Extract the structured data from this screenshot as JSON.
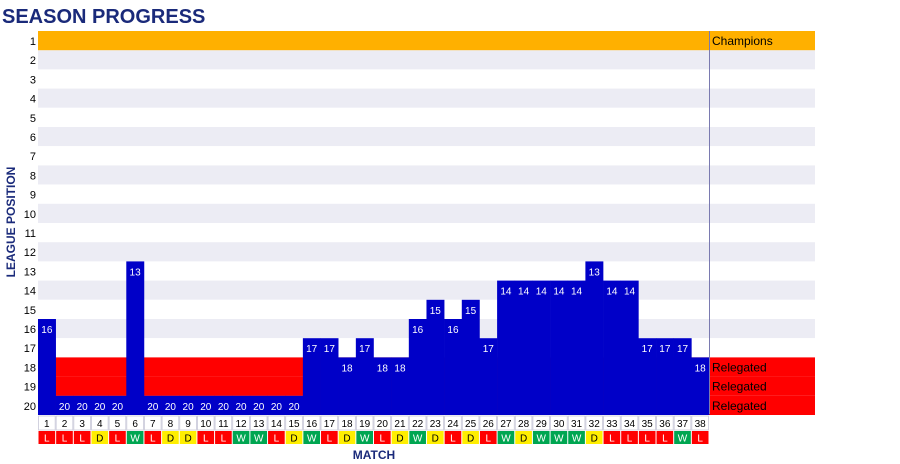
{
  "chart_data": {
    "type": "bar",
    "title": "SEASON PROGRESS",
    "xlabel": "MATCH",
    "ylabel": "LEAGUE POSITION",
    "y_axis_inverted": true,
    "ylim": [
      1,
      20
    ],
    "y_ticks": [
      "1",
      "2",
      "3",
      "4",
      "5",
      "6",
      "7",
      "8",
      "9",
      "10",
      "11",
      "12",
      "13",
      "14",
      "15",
      "16",
      "17",
      "18",
      "19",
      "20"
    ],
    "categories": [
      "1",
      "2",
      "3",
      "4",
      "5",
      "6",
      "7",
      "8",
      "9",
      "10",
      "11",
      "12",
      "13",
      "14",
      "15",
      "16",
      "17",
      "18",
      "19",
      "20",
      "21",
      "22",
      "23",
      "24",
      "25",
      "26",
      "27",
      "28",
      "29",
      "30",
      "31",
      "32",
      "33",
      "34",
      "35",
      "36",
      "37",
      "38"
    ],
    "values": [
      16,
      20,
      20,
      20,
      20,
      13,
      20,
      20,
      20,
      20,
      20,
      20,
      20,
      20,
      20,
      17,
      17,
      18,
      17,
      18,
      18,
      16,
      15,
      16,
      15,
      17,
      14,
      14,
      14,
      14,
      14,
      13,
      14,
      14,
      17,
      17,
      17,
      18
    ],
    "results": [
      "L",
      "L",
      "L",
      "D",
      "L",
      "W",
      "L",
      "D",
      "D",
      "L",
      "L",
      "W",
      "W",
      "L",
      "D",
      "W",
      "L",
      "D",
      "W",
      "L",
      "D",
      "W",
      "D",
      "L",
      "D",
      "L",
      "W",
      "D",
      "W",
      "W",
      "W",
      "D",
      "L",
      "L",
      "L",
      "L",
      "W",
      "L"
    ],
    "zones": [
      {
        "label": "Champions",
        "positions": [
          1
        ],
        "color": "#ffb000"
      },
      {
        "label": "Relegated",
        "positions": [
          18
        ],
        "color": "#ff0000"
      },
      {
        "label": "Relegated",
        "positions": [
          19
        ],
        "color": "#ff0000"
      },
      {
        "label": "Relegated",
        "positions": [
          20
        ],
        "color": "#ff0000"
      }
    ],
    "colors": {
      "bar": "#0000c8",
      "band_alt": "#ececf4",
      "band": "#ffffff",
      "title": "#1a2a7a",
      "result_W": "#00a651",
      "result_D": "#ffee00",
      "result_L": "#ff0000"
    },
    "grid": false,
    "legend": "none"
  }
}
